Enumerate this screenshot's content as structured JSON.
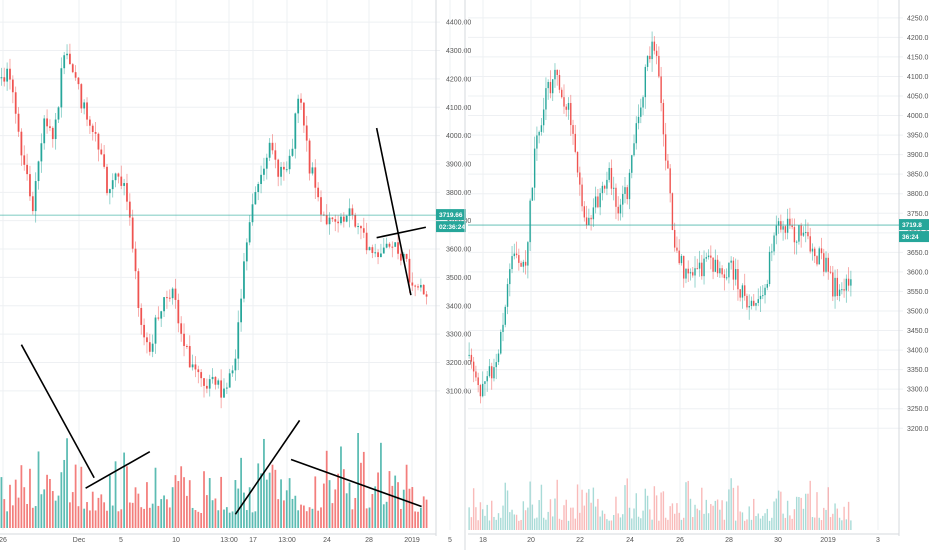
{
  "colors": {
    "up": "#26a69a",
    "down": "#ef5350",
    "grid": "#eef0f3",
    "axis": "#d6d9de",
    "price_line": "#26a69a",
    "trendline": "#000000"
  },
  "chart_data": [
    {
      "type": "candlestick",
      "title": "",
      "y_ticks": [
        "4400.00",
        "4300.00",
        "4200.00",
        "4100.00",
        "4000.00",
        "3900.00",
        "3800.00",
        "3700.00",
        "3600.00",
        "3500.00",
        "3400.00",
        "3300.00",
        "3200.00",
        "3100.00"
      ],
      "x_ticks": [
        "26",
        "Dec",
        "5",
        "10",
        "13:00",
        "17",
        "13:00",
        "24",
        "28",
        "2019",
        "5"
      ],
      "ylim": [
        3050,
        4450
      ],
      "last_price": "3719.66",
      "countdown": "02:36:24",
      "shape": [
        0.85,
        0.8,
        0.62,
        0.5,
        0.73,
        0.67,
        0.92,
        0.82,
        0.72,
        0.65,
        0.55,
        0.6,
        0.5,
        0.2,
        0.15,
        0.25,
        0.3,
        0.15,
        0.1,
        0.03,
        0.05,
        0.04,
        0.1,
        0.4,
        0.55,
        0.65,
        0.6,
        0.58,
        0.78,
        0.6,
        0.5,
        0.45,
        0.45,
        0.48,
        0.42,
        0.38,
        0.4,
        0.43,
        0.35,
        0.3,
        0.28
      ],
      "trendlines": [
        {
          "from": [
            0.05,
            0.355
          ],
          "to": [
            0.22,
            0.1
          ]
        },
        {
          "from": [
            0.2,
            0.08
          ],
          "to": [
            0.35,
            0.15
          ]
        },
        {
          "from": [
            0.55,
            0.03
          ],
          "to": [
            0.7,
            0.21
          ]
        },
        {
          "from": [
            0.68,
            0.135
          ],
          "to": [
            0.985,
            0.045
          ]
        },
        {
          "from": [
            0.88,
            0.77
          ],
          "to": [
            0.96,
            0.45
          ]
        },
        {
          "from": [
            0.88,
            0.56
          ],
          "to": [
            0.995,
            0.58
          ]
        }
      ]
    },
    {
      "type": "candlestick",
      "title": "",
      "y_ticks": [
        "4250.0",
        "4200.0",
        "4150.0",
        "4100.0",
        "4050.0",
        "4000.0",
        "3950.0",
        "3900.0",
        "3850.0",
        "3800.0",
        "3750.0",
        "3700.0",
        "3650.0",
        "3600.0",
        "3550.0",
        "3500.0",
        "3450.0",
        "3400.0",
        "3350.0",
        "3300.0",
        "3250.0",
        "3200.0"
      ],
      "x_ticks": [
        "18",
        "20",
        "22",
        "24",
        "26",
        "28",
        "30",
        "2019",
        "3"
      ],
      "ylim": [
        3170,
        4270
      ],
      "last_price": "3719.8",
      "countdown": "36:24",
      "shape": [
        0.22,
        0.1,
        0.15,
        0.18,
        0.35,
        0.45,
        0.4,
        0.65,
        0.78,
        0.85,
        0.8,
        0.75,
        0.55,
        0.5,
        0.58,
        0.62,
        0.55,
        0.58,
        0.74,
        0.86,
        0.93,
        0.7,
        0.45,
        0.4,
        0.38,
        0.4,
        0.42,
        0.38,
        0.4,
        0.36,
        0.3,
        0.32,
        0.38,
        0.52,
        0.5,
        0.47,
        0.48,
        0.44,
        0.42,
        0.36,
        0.34,
        0.36
      ],
      "trendlines": []
    }
  ]
}
